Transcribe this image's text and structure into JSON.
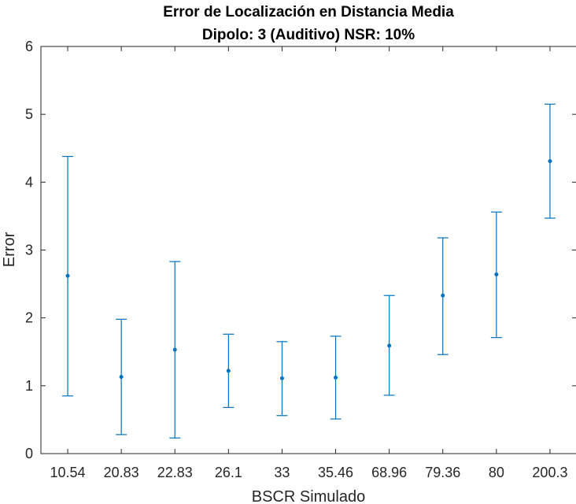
{
  "chart_data": {
    "type": "errorbar",
    "title": "Error de Localización en Distancia Media",
    "subtitle": "Dipolo: 3 (Auditivo) NSR: 10%",
    "xlabel": "BSCR Simulado",
    "ylabel": "Error",
    "categories": [
      "10.54",
      "20.83",
      "22.83",
      "26.1",
      "33",
      "35.46",
      "68.96",
      "79.36",
      "80",
      "200.3"
    ],
    "means": [
      2.62,
      1.13,
      1.53,
      1.22,
      1.11,
      1.12,
      1.59,
      2.33,
      2.64,
      4.31
    ],
    "lower": [
      0.85,
      0.28,
      0.23,
      0.68,
      0.56,
      0.51,
      0.86,
      1.46,
      1.71,
      3.47
    ],
    "upper": [
      4.38,
      1.98,
      2.83,
      1.76,
      1.65,
      1.73,
      2.33,
      3.18,
      3.56,
      5.15
    ],
    "ylim": [
      0,
      6
    ],
    "yticks": [
      0,
      1,
      2,
      3,
      4,
      5,
      6
    ],
    "grid": false,
    "color": "#0072BD"
  }
}
